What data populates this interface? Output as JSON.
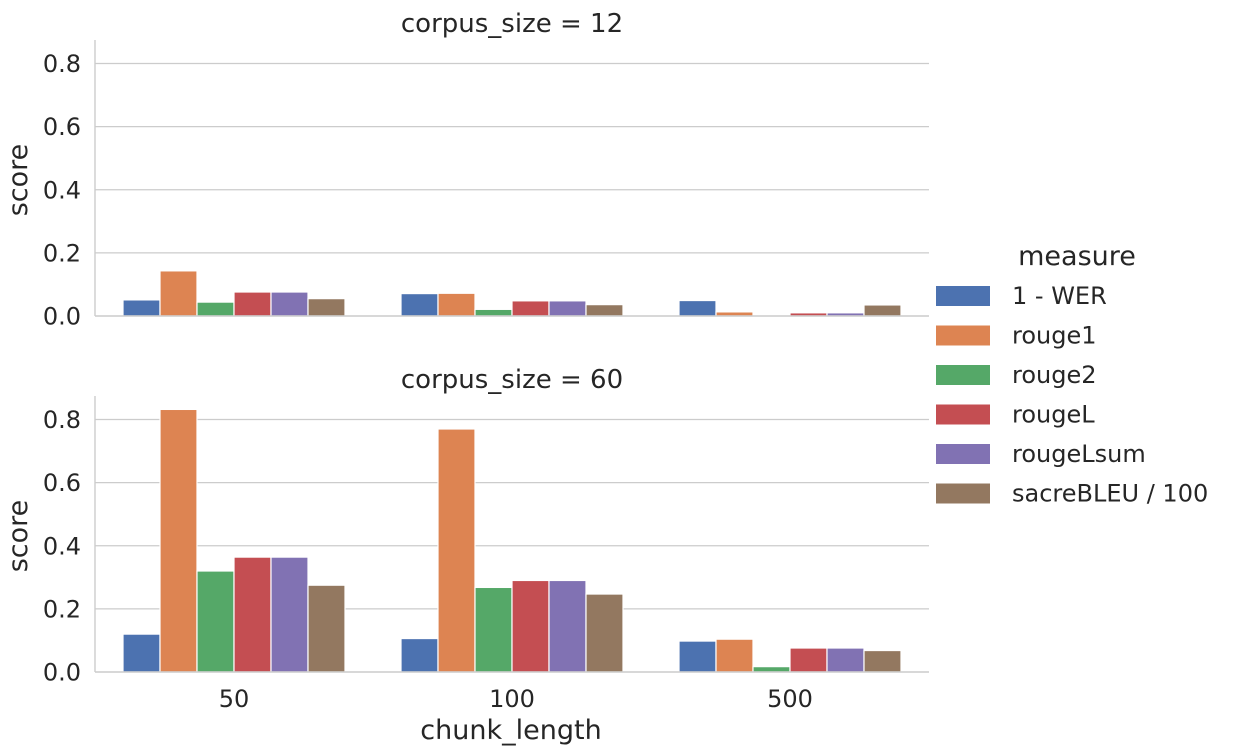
{
  "chart_data": {
    "type": "bar",
    "xlabel": "chunk_length",
    "ylabel": "score",
    "categories": [
      "50",
      "100",
      "500"
    ],
    "ylim": [
      0,
      0.88
    ],
    "yticks": [
      0.0,
      0.2,
      0.4,
      0.6,
      0.8
    ],
    "ytick_labels": [
      "0.0",
      "0.2",
      "0.4",
      "0.6",
      "0.8"
    ],
    "grid": true,
    "legend": {
      "title": "measure",
      "placement": "right",
      "entries": [
        "1 - WER",
        "rouge1",
        "rouge2",
        "rougeL",
        "rougeLsum",
        "sacreBLEU / 100"
      ]
    },
    "colors": {
      "1 - WER": "#4c72b0",
      "rouge1": "#dd8452",
      "rouge2": "#55a868",
      "rougeL": "#c44e52",
      "rougeLsum": "#8172b3",
      "sacreBLEU / 100": "#937860"
    },
    "panels": [
      {
        "title": "corpus_size = 12",
        "series": [
          {
            "name": "1 - WER",
            "values": [
              0.051,
              0.071,
              0.049
            ]
          },
          {
            "name": "rouge1",
            "values": [
              0.143,
              0.072,
              0.013
            ]
          },
          {
            "name": "rouge2",
            "values": [
              0.044,
              0.021,
              0.0
            ]
          },
          {
            "name": "rougeL",
            "values": [
              0.076,
              0.048,
              0.01
            ]
          },
          {
            "name": "rougeLsum",
            "values": [
              0.076,
              0.048,
              0.01
            ]
          },
          {
            "name": "sacreBLEU / 100",
            "values": [
              0.055,
              0.036,
              0.035
            ]
          }
        ]
      },
      {
        "title": "corpus_size = 60",
        "series": [
          {
            "name": "1 - WER",
            "values": [
              0.12,
              0.106,
              0.098
            ]
          },
          {
            "name": "rouge1",
            "values": [
              0.832,
              0.77,
              0.104
            ]
          },
          {
            "name": "rouge2",
            "values": [
              0.32,
              0.268,
              0.017
            ]
          },
          {
            "name": "rougeL",
            "values": [
              0.364,
              0.29,
              0.076
            ]
          },
          {
            "name": "rougeLsum",
            "values": [
              0.364,
              0.29,
              0.076
            ]
          },
          {
            "name": "sacreBLEU / 100",
            "values": [
              0.275,
              0.247,
              0.068
            ]
          }
        ]
      }
    ]
  }
}
